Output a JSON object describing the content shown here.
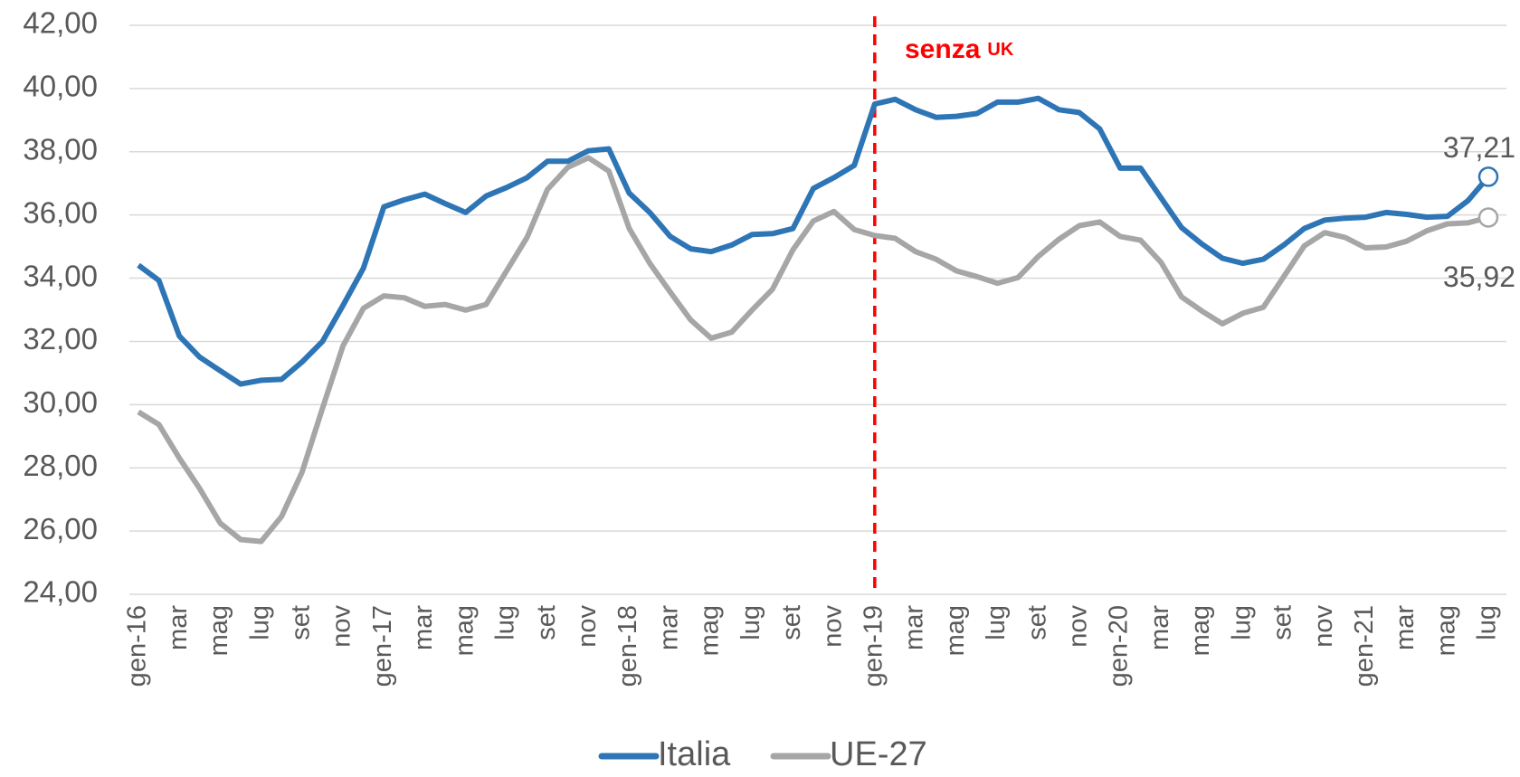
{
  "chart_data": {
    "type": "line",
    "categories": [
      "gen-16",
      null,
      "mar",
      null,
      "mag",
      null,
      "lug",
      null,
      "set",
      null,
      "nov",
      null,
      "gen-17",
      null,
      "mar",
      null,
      "mag",
      null,
      "lug",
      null,
      "set",
      null,
      "nov",
      null,
      "gen-18",
      null,
      "mar",
      null,
      "mag",
      null,
      "lug",
      null,
      "set",
      null,
      "nov",
      null,
      "gen-19",
      null,
      "mar",
      null,
      "mag",
      null,
      "lug",
      null,
      "set",
      null,
      "nov",
      null,
      "gen-20",
      null,
      "mar",
      null,
      "mag",
      null,
      "lug",
      null,
      "set",
      null,
      "nov",
      null,
      "gen-21",
      null,
      "mar",
      null,
      "mag",
      null,
      "lug"
    ],
    "series": [
      {
        "name": "Italia",
        "color": "#2e75b6",
        "values": [
          34.41,
          33.93,
          32.17,
          31.5,
          31.07,
          30.65,
          30.77,
          30.8,
          31.35,
          32.0,
          33.14,
          34.32,
          36.26,
          36.48,
          36.66,
          36.36,
          36.08,
          36.6,
          36.87,
          37.18,
          37.7,
          37.7,
          38.03,
          38.09,
          36.69,
          36.08,
          35.32,
          34.93,
          34.84,
          35.05,
          35.38,
          35.41,
          35.57,
          36.84,
          37.18,
          37.57,
          39.51,
          39.66,
          39.33,
          39.09,
          39.12,
          39.21,
          39.57,
          39.57,
          39.69,
          39.33,
          39.24,
          38.72,
          37.48,
          37.48,
          36.54,
          35.6,
          35.08,
          34.63,
          34.47,
          34.6,
          35.05,
          35.57,
          35.84,
          35.9,
          35.93,
          36.08,
          36.02,
          35.93,
          35.96,
          36.45,
          37.21
        ],
        "value_labels": [
          null,
          null,
          null,
          null,
          null,
          null,
          null,
          null,
          null,
          null,
          null,
          null,
          null,
          null,
          null,
          null,
          null,
          null,
          null,
          null,
          null,
          null,
          null,
          null,
          null,
          null,
          null,
          null,
          null,
          null,
          null,
          null,
          null,
          null,
          null,
          null,
          null,
          null,
          null,
          null,
          null,
          null,
          null,
          null,
          null,
          null,
          null,
          null,
          null,
          null,
          null,
          null,
          null,
          null,
          null,
          null,
          null,
          null,
          null,
          null,
          null,
          null,
          null,
          null,
          null,
          null,
          "37,21"
        ]
      },
      {
        "name": "UE-27",
        "color": "#a6a6a6",
        "values": [
          29.77,
          29.37,
          28.31,
          27.34,
          26.25,
          25.73,
          25.67,
          26.46,
          27.86,
          29.89,
          31.86,
          33.05,
          33.44,
          33.38,
          33.11,
          33.17,
          32.99,
          33.17,
          34.23,
          35.29,
          36.81,
          37.51,
          37.81,
          37.39,
          35.57,
          34.47,
          33.56,
          32.68,
          32.1,
          32.29,
          32.99,
          33.65,
          34.9,
          35.81,
          36.11,
          35.54,
          35.35,
          35.26,
          34.84,
          34.6,
          34.23,
          34.05,
          33.84,
          34.02,
          34.69,
          35.23,
          35.66,
          35.78,
          35.32,
          35.2,
          34.5,
          33.41,
          32.96,
          32.56,
          32.89,
          33.08,
          34.05,
          35.02,
          35.44,
          35.29,
          34.96,
          34.99,
          35.17,
          35.5,
          35.72,
          35.75,
          35.92
        ],
        "value_labels": [
          null,
          null,
          null,
          null,
          null,
          null,
          null,
          null,
          null,
          null,
          null,
          null,
          null,
          null,
          null,
          null,
          null,
          null,
          null,
          null,
          null,
          null,
          null,
          null,
          null,
          null,
          null,
          null,
          null,
          null,
          null,
          null,
          null,
          null,
          null,
          null,
          null,
          null,
          null,
          null,
          null,
          null,
          null,
          null,
          null,
          null,
          null,
          null,
          null,
          null,
          null,
          null,
          null,
          null,
          null,
          null,
          null,
          null,
          null,
          null,
          null,
          null,
          null,
          null,
          null,
          null,
          "35,92"
        ]
      }
    ],
    "ylim": [
      24,
      42
    ],
    "yticks": [
      {
        "value": 24,
        "label": "24,00"
      },
      {
        "value": 26,
        "label": "26,00"
      },
      {
        "value": 28,
        "label": "28,00"
      },
      {
        "value": 30,
        "label": "30,00"
      },
      {
        "value": 32,
        "label": "32,00"
      },
      {
        "value": 34,
        "label": "34,00"
      },
      {
        "value": 36,
        "label": "36,00"
      },
      {
        "value": 38,
        "label": "38,00"
      },
      {
        "value": 40,
        "label": "40,00"
      },
      {
        "value": 42,
        "label": "42,00"
      }
    ],
    "grid": true,
    "legend": "bottom",
    "annotation": {
      "text": "senza",
      "subtext": "UK",
      "at": 36,
      "color": "#ff0000"
    }
  }
}
